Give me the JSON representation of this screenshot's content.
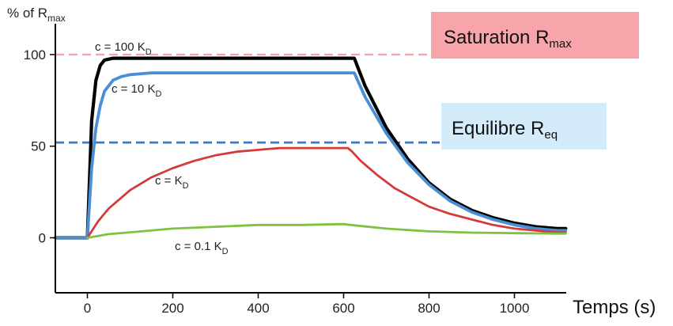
{
  "chart_data": {
    "type": "line",
    "ylabel": {
      "main": "% of R",
      "sub": "max"
    },
    "xlabel": "Temps (s)",
    "xlim": [
      -75,
      1125
    ],
    "ylim": [
      -30,
      122
    ],
    "x_ticks": [
      "0",
      "200",
      "400",
      "600",
      "800",
      "1000"
    ],
    "x_tick_values": [
      0,
      200,
      400,
      600,
      800,
      1000
    ],
    "y_ticks": [
      "0",
      "50",
      "100"
    ],
    "y_tick_values": [
      0,
      50,
      100
    ],
    "grid": false,
    "reference_lines": [
      {
        "id": "rmax",
        "y": 100,
        "color": "#f4a3a8",
        "style": "dashed",
        "label_main": "Saturation R",
        "label_sub": "max",
        "box_color": "#f7a5aa"
      },
      {
        "id": "req",
        "y": 52,
        "color": "#3a78d0",
        "style": "dashed",
        "label_main": "Equilibre R",
        "label_sub": "eq",
        "box_color": "#d4ecf9"
      }
    ],
    "series": [
      {
        "id": "s100",
        "label_main": "c = 100 K",
        "label_sub": "D",
        "color": "#000000",
        "width": 4.2,
        "points": [
          [
            -75,
            0
          ],
          [
            -10,
            0
          ],
          [
            0,
            0
          ],
          [
            10,
            64
          ],
          [
            20,
            86
          ],
          [
            30,
            94
          ],
          [
            40,
            97
          ],
          [
            60,
            98
          ],
          [
            100,
            98
          ],
          [
            200,
            98
          ],
          [
            400,
            98
          ],
          [
            600,
            98
          ],
          [
            625,
            98
          ],
          [
            650,
            83
          ],
          [
            700,
            60
          ],
          [
            750,
            43
          ],
          [
            800,
            30
          ],
          [
            850,
            21
          ],
          [
            900,
            15
          ],
          [
            950,
            11
          ],
          [
            1000,
            8
          ],
          [
            1050,
            6
          ],
          [
            1100,
            5
          ],
          [
            1120,
            5
          ]
        ]
      },
      {
        "id": "s10",
        "label_main": "c = 10 K",
        "label_sub": "D",
        "color": "#4a8fd6",
        "width": 3.8,
        "points": [
          [
            -75,
            0
          ],
          [
            -10,
            0
          ],
          [
            0,
            0
          ],
          [
            10,
            38
          ],
          [
            20,
            60
          ],
          [
            30,
            72
          ],
          [
            40,
            80
          ],
          [
            60,
            86
          ],
          [
            80,
            88
          ],
          [
            100,
            89
          ],
          [
            150,
            90
          ],
          [
            200,
            90
          ],
          [
            400,
            90
          ],
          [
            600,
            90
          ],
          [
            625,
            90
          ],
          [
            650,
            77
          ],
          [
            700,
            57
          ],
          [
            750,
            41
          ],
          [
            800,
            29
          ],
          [
            850,
            20
          ],
          [
            900,
            14
          ],
          [
            950,
            10
          ],
          [
            1000,
            7
          ],
          [
            1050,
            5
          ],
          [
            1100,
            4
          ],
          [
            1120,
            4
          ]
        ]
      },
      {
        "id": "s1",
        "label_main": "c = K",
        "label_sub": "D",
        "color": "#d33b3b",
        "width": 2.8,
        "points": [
          [
            0,
            0
          ],
          [
            25,
            9
          ],
          [
            50,
            16
          ],
          [
            75,
            21
          ],
          [
            100,
            26
          ],
          [
            150,
            33
          ],
          [
            200,
            38
          ],
          [
            250,
            42
          ],
          [
            300,
            45
          ],
          [
            350,
            47
          ],
          [
            400,
            48
          ],
          [
            450,
            49
          ],
          [
            500,
            49
          ],
          [
            550,
            49
          ],
          [
            600,
            49
          ],
          [
            610,
            49
          ],
          [
            620,
            47
          ],
          [
            640,
            42
          ],
          [
            680,
            34
          ],
          [
            720,
            27
          ],
          [
            760,
            22
          ],
          [
            800,
            17
          ],
          [
            850,
            13
          ],
          [
            900,
            10
          ],
          [
            950,
            7
          ],
          [
            1000,
            5
          ],
          [
            1050,
            4
          ],
          [
            1100,
            3
          ],
          [
            1120,
            3
          ]
        ]
      },
      {
        "id": "s01",
        "label_main": "c = 0.1 K",
        "label_sub": "D",
        "color": "#7fc241",
        "width": 2.8,
        "points": [
          [
            0,
            0
          ],
          [
            50,
            2
          ],
          [
            100,
            3
          ],
          [
            200,
            5
          ],
          [
            300,
            6
          ],
          [
            400,
            7
          ],
          [
            500,
            7
          ],
          [
            600,
            7.5
          ],
          [
            625,
            6.8
          ],
          [
            700,
            5
          ],
          [
            800,
            3.5
          ],
          [
            900,
            2.8
          ],
          [
            1000,
            2.5
          ],
          [
            1100,
            2.3
          ],
          [
            1120,
            2.3
          ]
        ]
      }
    ]
  }
}
